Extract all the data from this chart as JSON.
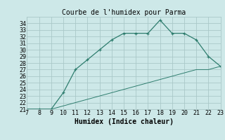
{
  "title": "Courbe de l'humidex pour Parma",
  "xlabel": "Humidex (Indice chaleur)",
  "xlim": [
    7,
    23
  ],
  "ylim": [
    21,
    35
  ],
  "xticks": [
    7,
    8,
    9,
    10,
    11,
    12,
    13,
    14,
    15,
    16,
    17,
    18,
    19,
    20,
    21,
    22,
    23
  ],
  "yticks": [
    21,
    22,
    23,
    24,
    25,
    26,
    27,
    28,
    29,
    30,
    31,
    32,
    33,
    34
  ],
  "line1_x": [
    7,
    8,
    9,
    10,
    11,
    12,
    13,
    14,
    15,
    16,
    17,
    18,
    19,
    20,
    21,
    22,
    23
  ],
  "line1_y": [
    21.0,
    21.0,
    21.0,
    23.5,
    27.0,
    28.5,
    30.0,
    31.5,
    32.5,
    32.5,
    32.5,
    34.5,
    32.5,
    32.5,
    31.5,
    29.0,
    27.5
  ],
  "line2_x": [
    7,
    8,
    9,
    10,
    11,
    12,
    13,
    14,
    15,
    16,
    17,
    18,
    19,
    20,
    21,
    22,
    23
  ],
  "line2_y": [
    21.0,
    21.0,
    21.0,
    21.5,
    22.0,
    22.5,
    23.0,
    23.5,
    24.0,
    24.5,
    25.0,
    25.5,
    26.0,
    26.5,
    27.0,
    27.0,
    27.5
  ],
  "line_color": "#2e7d6e",
  "bg_color": "#cde8e8",
  "grid_color": "#aac8c8",
  "title_fontsize": 7,
  "tick_fontsize": 6,
  "xlabel_fontsize": 7
}
